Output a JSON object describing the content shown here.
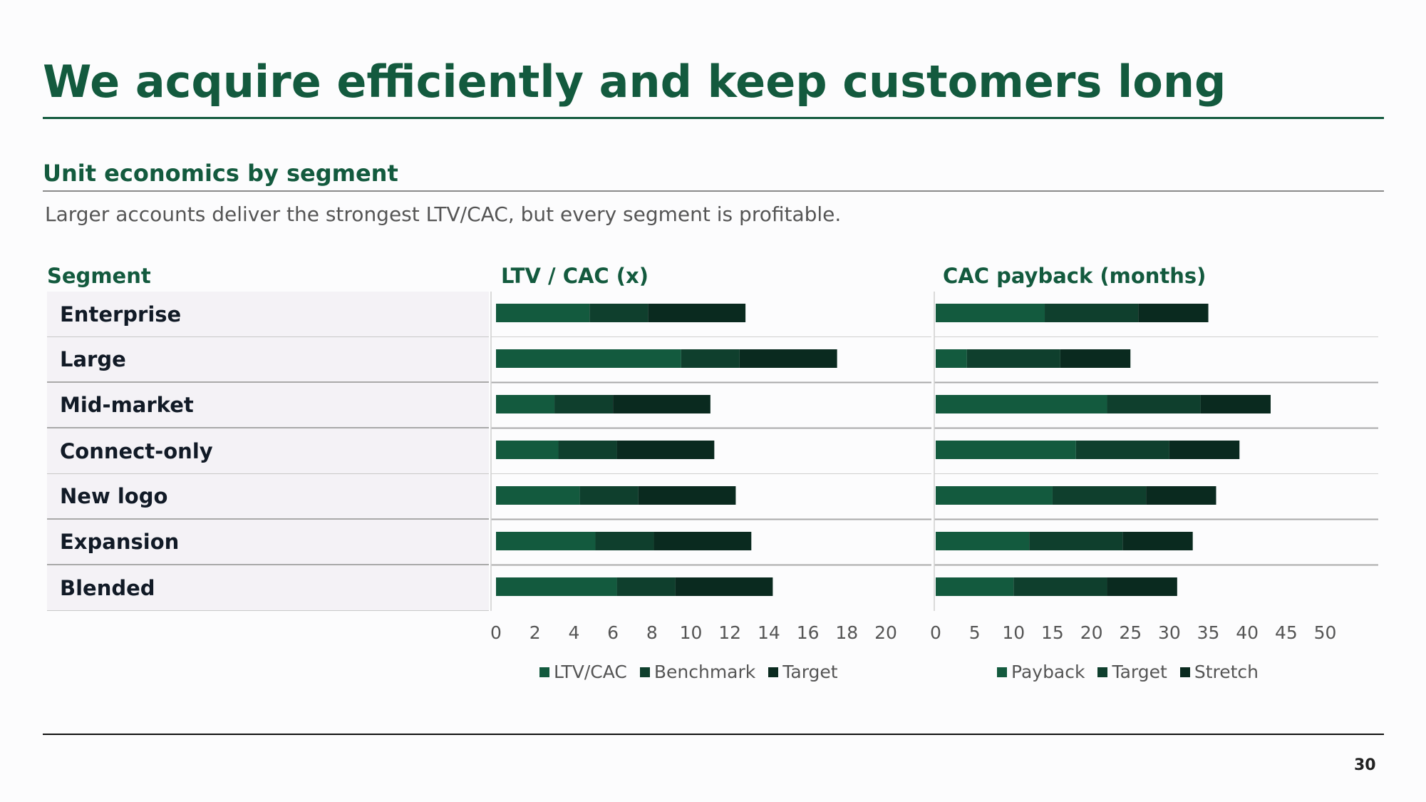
{
  "header": {
    "title": "We acquire efficiently and keep customers long",
    "subtitle": "Unit economics by segment",
    "caption": "Larger accounts deliver the strongest LTV/CAC, but every segment is profitable."
  },
  "table": {
    "segment_header": "Segment",
    "segments": [
      "Enterprise",
      "Large",
      "Mid-market",
      "Connect-only",
      "New logo",
      "Expansion",
      "Blended"
    ]
  },
  "colors": {
    "primary": "#135a3e",
    "secondary": "#0f3f2d",
    "tertiary": "#0a2a1f"
  },
  "chart_data": [
    {
      "type": "bar",
      "stacked": true,
      "orientation": "horizontal",
      "title": "LTV / CAC (x)",
      "categories": [
        "Enterprise",
        "Large",
        "Mid-market",
        "Connect-only",
        "New logo",
        "Expansion",
        "Blended"
      ],
      "series": [
        {
          "name": "LTV/CAC",
          "values": [
            4.8,
            9.5,
            3.0,
            3.2,
            4.3,
            5.1,
            6.2
          ]
        },
        {
          "name": "Benchmark",
          "values": [
            3.0,
            3.0,
            3.0,
            3.0,
            3.0,
            3.0,
            3.0
          ]
        },
        {
          "name": "Target",
          "values": [
            5.0,
            5.0,
            5.0,
            5.0,
            5.0,
            5.0,
            5.0
          ]
        }
      ],
      "xlim": [
        0,
        20
      ],
      "ticks": [
        0,
        2,
        4,
        6,
        8,
        10,
        12,
        14,
        16,
        18,
        20
      ],
      "legend": "bottom"
    },
    {
      "type": "bar",
      "stacked": true,
      "orientation": "horizontal",
      "title": "CAC payback (months)",
      "categories": [
        "Enterprise",
        "Large",
        "Mid-market",
        "Connect-only",
        "New logo",
        "Expansion",
        "Blended"
      ],
      "series": [
        {
          "name": "Payback",
          "values": [
            14,
            4,
            22,
            18,
            15,
            12,
            10
          ]
        },
        {
          "name": "Target",
          "values": [
            12,
            12,
            12,
            12,
            12,
            12,
            12
          ]
        },
        {
          "name": "Stretch",
          "values": [
            9,
            9,
            9,
            9,
            9,
            9,
            9
          ]
        }
      ],
      "xlim": [
        0,
        50
      ],
      "ticks": [
        0,
        5,
        10,
        15,
        20,
        25,
        30,
        35,
        40,
        45,
        50
      ],
      "legend": "bottom"
    }
  ],
  "footer": {
    "page_number": "30"
  }
}
